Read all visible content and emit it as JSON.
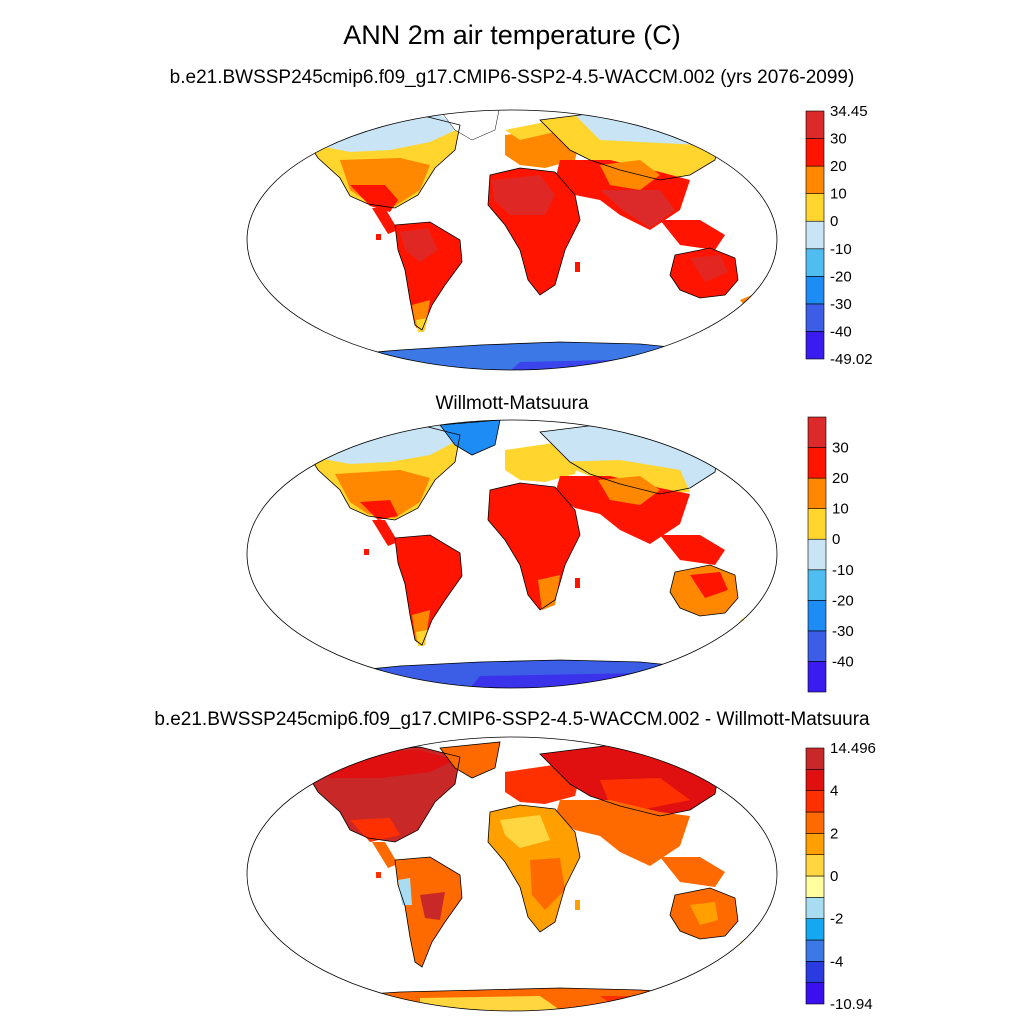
{
  "title": "ANN 2m air temperature (C)",
  "panels": [
    {
      "subtitle": "b.e21.BWSSP245cmip6.f09_g17.CMIP6-SSP2-4.5-WACCM.002 (yrs 2076-2099)",
      "colorbar": {
        "colors": [
          "#3a1cf0",
          "#3c5ee6",
          "#1e8cf5",
          "#50bdf0",
          "#c8e4f5",
          "#ffd52e",
          "#ff8800",
          "#ff1400",
          "#dc2a2a"
        ],
        "labels": [
          "-49.02",
          "-40",
          "-30",
          "-20",
          "-10",
          "0",
          "10",
          "20",
          "30",
          "34.45"
        ]
      }
    },
    {
      "subtitle": "Willmott-Matsuura",
      "colorbar": {
        "colors": [
          "#3a1cf0",
          "#3c5ee6",
          "#1e8cf5",
          "#50bdf0",
          "#c8e4f5",
          "#ffd52e",
          "#ff8800",
          "#ff1400",
          "#dc2a2a"
        ],
        "labels": [
          "",
          "-40",
          "-30",
          "-20",
          "-10",
          "0",
          "10",
          "20",
          "30",
          ""
        ]
      }
    },
    {
      "subtitle": "b.e21.BWSSP245cmip6.f09_g17.CMIP6-SSP2-4.5-WACCM.002 - Willmott-Matsuura",
      "colorbar": {
        "colors": [
          "#3a10f0",
          "#2a3ce0",
          "#3c78e6",
          "#14a8f0",
          "#a8dcf0",
          "#ffffa0",
          "#ffd540",
          "#ffa000",
          "#ff6a00",
          "#ff3000",
          "#e01010",
          "#c82828"
        ],
        "labels": [
          "-10.94",
          "",
          "-4",
          "",
          "-2",
          "",
          "0",
          "",
          "2",
          "",
          "4",
          "",
          "14.496"
        ]
      }
    }
  ]
}
